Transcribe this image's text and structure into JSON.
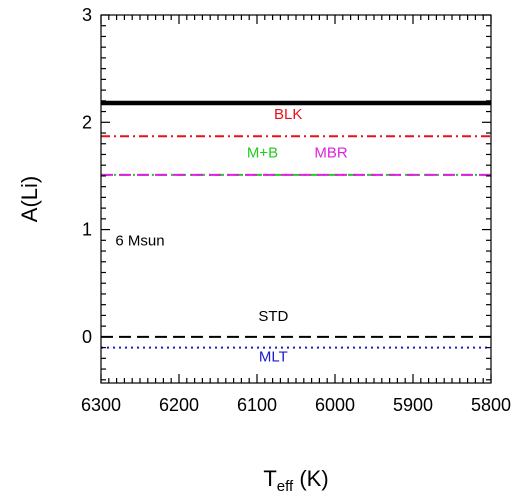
{
  "chart_data": {
    "type": "line",
    "xlabel_main": "T",
    "xlabel_sub": "eff",
    "xlabel_unit": " (K)",
    "ylabel": "A(Li)",
    "xlim": [
      6300,
      5800
    ],
    "ylim": [
      -0.43,
      3.0
    ],
    "x_reversed": true,
    "x_ticks": [
      6300,
      6200,
      6100,
      6000,
      5900,
      5800
    ],
    "x_tick_labels": [
      "6300",
      "6200",
      "6100",
      "6000",
      "5900",
      "5800"
    ],
    "y_ticks": [
      0,
      1,
      2,
      3
    ],
    "y_tick_labels": [
      "0",
      "1",
      "2",
      "3"
    ],
    "grid": false,
    "series": [
      {
        "x": [
          6300,
          5800
        ],
        "y": [
          2.18,
          2.18
        ],
        "color": "#000000",
        "style": "solid",
        "width": "thick"
      },
      {
        "name": "BLK",
        "x": [
          6300,
          5800
        ],
        "y": [
          1.87,
          1.87
        ],
        "color": "#e8101a",
        "style": "dashdot"
      },
      {
        "name": "M+B",
        "x": [
          6300,
          5800
        ],
        "y": [
          1.51,
          1.51
        ],
        "color": "#22cc22",
        "style": "dashdot"
      },
      {
        "name": "MBR",
        "x": [
          6300,
          5800
        ],
        "y": [
          1.51,
          1.51
        ],
        "color": "#dd22dd",
        "style": "dashed"
      },
      {
        "name": "STD",
        "x": [
          6300,
          5800
        ],
        "y": [
          0.0,
          0.0
        ],
        "color": "#000000",
        "style": "dashed"
      },
      {
        "name": "MLT",
        "x": [
          6300,
          5800
        ],
        "y": [
          -0.1,
          -0.1
        ],
        "color": "#1a1ad0",
        "style": "dotted"
      }
    ],
    "annotations": [
      {
        "text": "BLK",
        "x": 6060,
        "y": 2.03,
        "color": "#e8101a"
      },
      {
        "text": "M+B",
        "x": 6093,
        "y": 1.67,
        "color": "#22cc22"
      },
      {
        "text": "MBR",
        "x": 6005,
        "y": 1.67,
        "color": "#dd22dd"
      },
      {
        "text": "6 Msun",
        "x": 6250,
        "y": 0.85,
        "color": "#000000"
      },
      {
        "text": "STD",
        "x": 6079,
        "y": 0.15,
        "color": "#000000"
      },
      {
        "text": "MLT",
        "x": 6079,
        "y": -0.23,
        "color": "#1a1ad0"
      }
    ]
  }
}
